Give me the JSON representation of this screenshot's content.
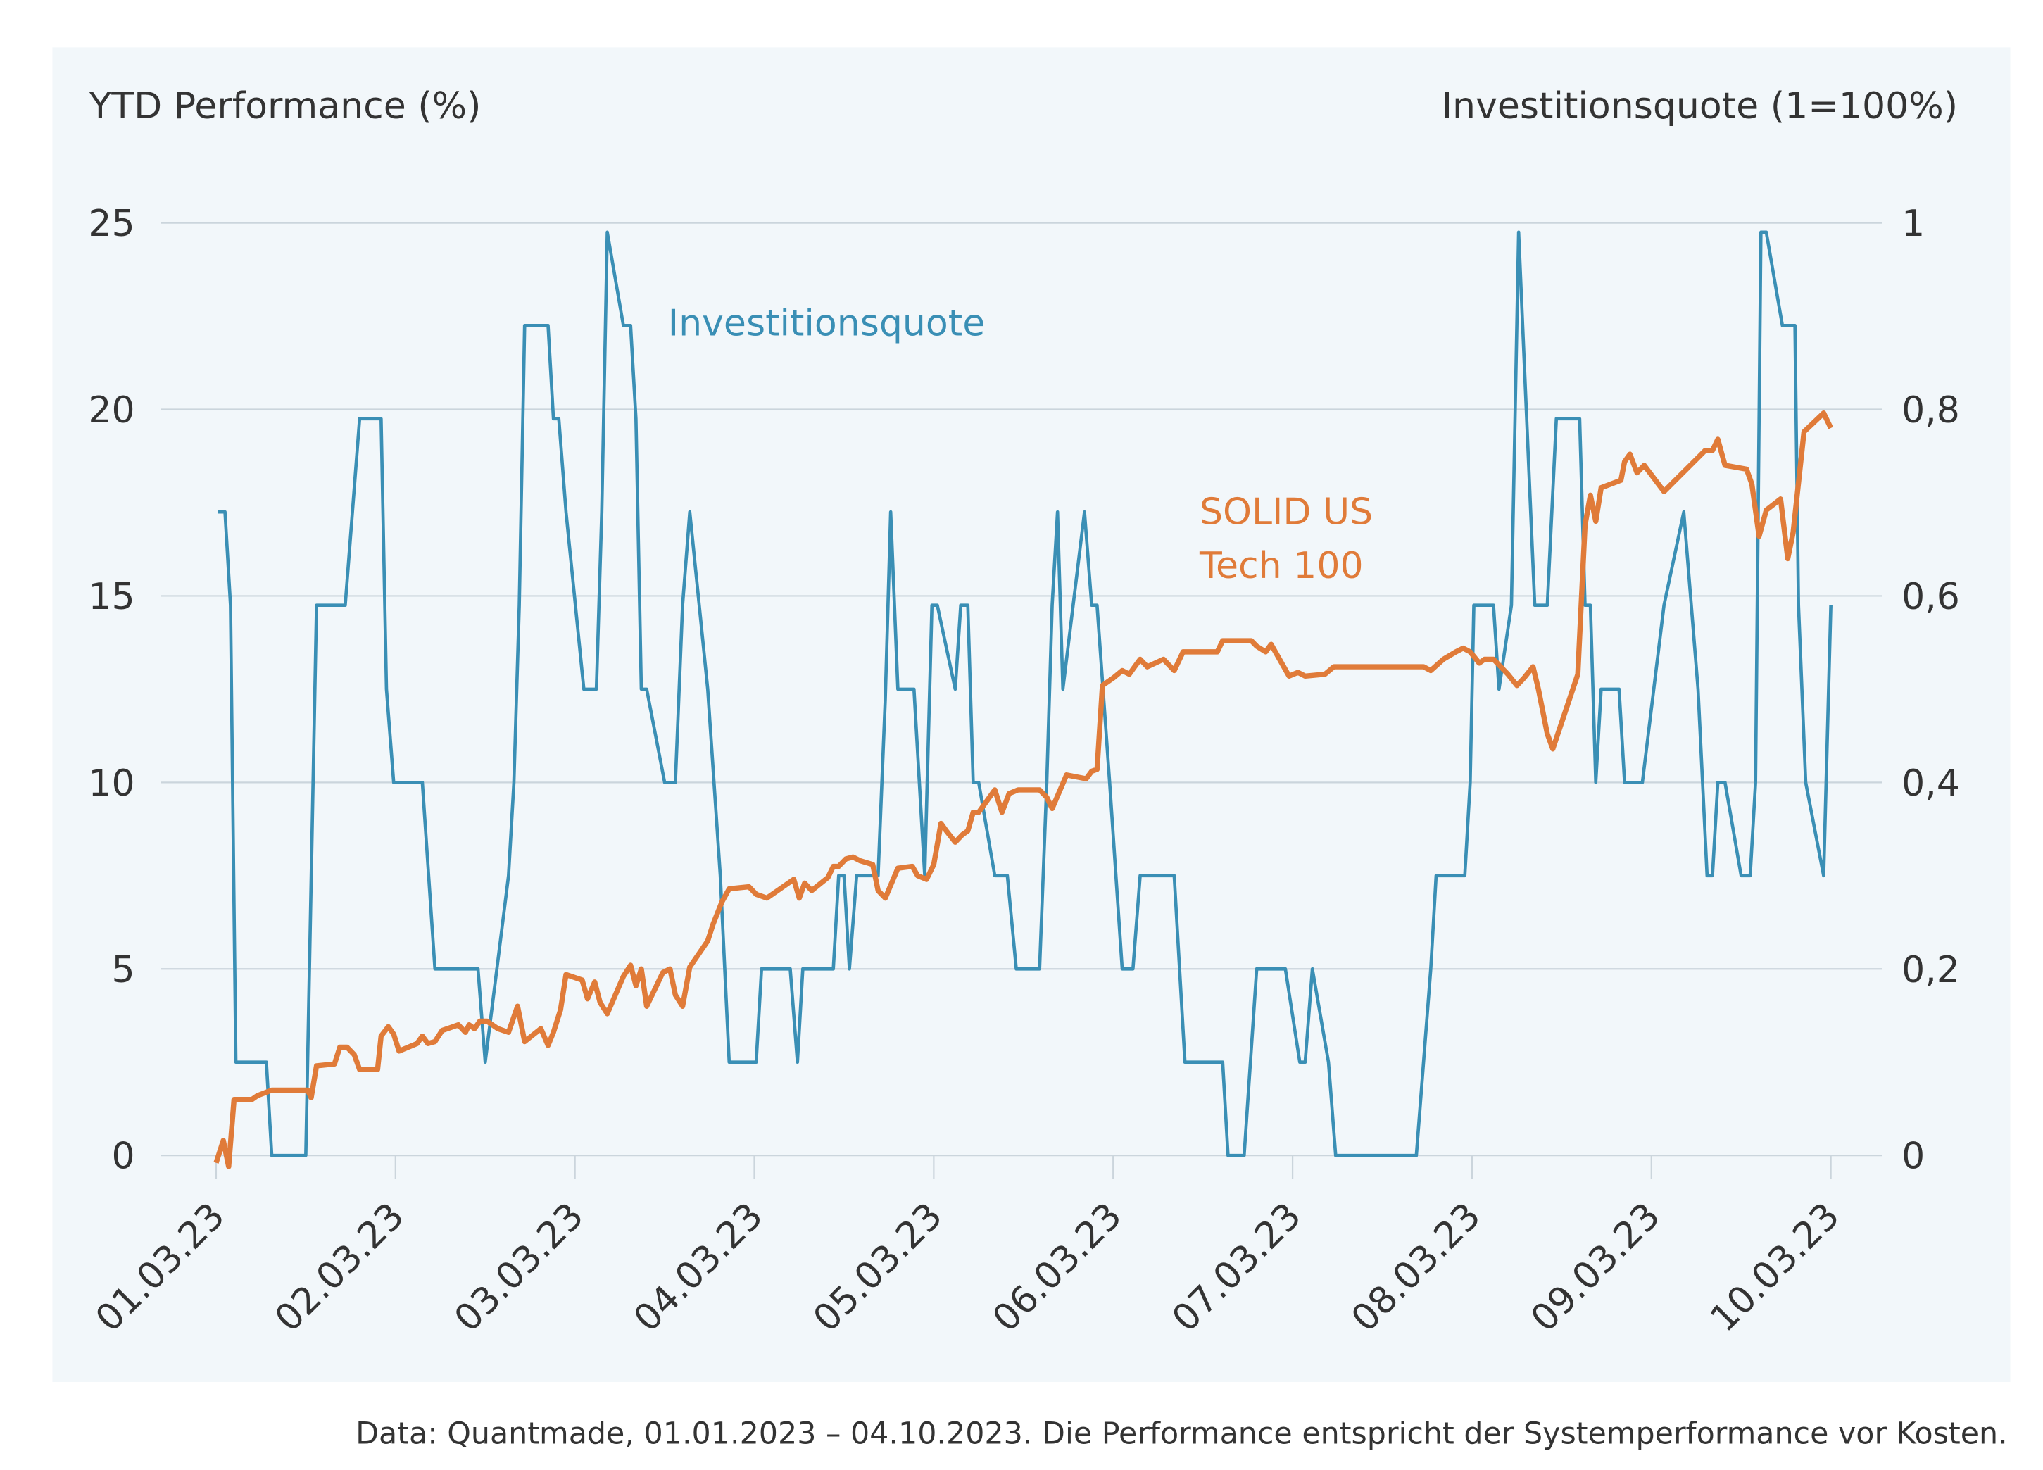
{
  "chart_data": {
    "type": "line",
    "title": "",
    "y_left_label": "YTD Performance (%)",
    "y_right_label": "Investitionsquote (1=100%)",
    "x_axis_unit": "day of March 2023 (1 = 01.03.23)",
    "x_tick_labels": [
      "01.03.23",
      "02.03.23",
      "03.03.23",
      "04.03.23",
      "05.03.23",
      "06.03.23",
      "07.03.23",
      "08.03.23",
      "09.03.23",
      "10.03.23"
    ],
    "x_ticks": [
      1,
      2,
      3,
      4,
      5,
      6,
      7,
      8,
      9,
      10
    ],
    "xlim": [
      1,
      10
    ],
    "y_left_ticks": [
      0,
      5,
      10,
      15,
      20,
      25
    ],
    "y_left_tick_labels": [
      "0",
      "5",
      "10",
      "15",
      "20",
      "25"
    ],
    "ylim_left": [
      0,
      25
    ],
    "y_right_ticks": [
      0,
      0.2,
      0.4,
      0.6,
      0.8,
      1
    ],
    "y_right_tick_labels": [
      "0",
      "0,2",
      "0,4",
      "0,6",
      "0,8",
      "1"
    ],
    "ylim_right": [
      0,
      1
    ],
    "grid": "horizontal",
    "colors": {
      "background": "#f2f7fa",
      "grid": "#cbd5dc",
      "performance": "#e07b39",
      "quote": "#3a8fb5",
      "text": "#333333"
    },
    "series": [
      {
        "name": "SOLID US Tech 100",
        "label_lines": [
          "SOLID US",
          "Tech 100"
        ],
        "axis": "left",
        "points": [
          [
            1.0,
            -0.2
          ],
          [
            1.04,
            0.4
          ],
          [
            1.07,
            -0.3
          ],
          [
            1.1,
            1.5
          ],
          [
            1.2,
            1.5
          ],
          [
            1.23,
            1.6
          ],
          [
            1.31,
            1.75
          ],
          [
            1.51,
            1.75
          ],
          [
            1.53,
            1.55
          ],
          [
            1.56,
            2.4
          ],
          [
            1.66,
            2.45
          ],
          [
            1.69,
            2.9
          ],
          [
            1.73,
            2.9
          ],
          [
            1.77,
            2.7
          ],
          [
            1.8,
            2.3
          ],
          [
            1.9,
            2.3
          ],
          [
            1.92,
            3.2
          ],
          [
            1.96,
            3.45
          ],
          [
            1.99,
            3.25
          ],
          [
            2.02,
            2.8
          ],
          [
            2.12,
            3.0
          ],
          [
            2.15,
            3.2
          ],
          [
            2.18,
            3.0
          ],
          [
            2.22,
            3.05
          ],
          [
            2.26,
            3.35
          ],
          [
            2.35,
            3.5
          ],
          [
            2.39,
            3.3
          ],
          [
            2.41,
            3.5
          ],
          [
            2.44,
            3.4
          ],
          [
            2.47,
            3.6
          ],
          [
            2.51,
            3.6
          ],
          [
            2.57,
            3.4
          ],
          [
            2.63,
            3.3
          ],
          [
            2.68,
            4.0
          ],
          [
            2.72,
            3.05
          ],
          [
            2.81,
            3.4
          ],
          [
            2.85,
            2.95
          ],
          [
            2.88,
            3.3
          ],
          [
            2.92,
            3.9
          ],
          [
            2.95,
            4.85
          ],
          [
            3.04,
            4.7
          ],
          [
            3.07,
            4.2
          ],
          [
            3.11,
            4.65
          ],
          [
            3.14,
            4.1
          ],
          [
            3.18,
            3.8
          ],
          [
            3.27,
            4.8
          ],
          [
            3.31,
            5.1
          ],
          [
            3.34,
            4.55
          ],
          [
            3.37,
            5.0
          ],
          [
            3.4,
            4.0
          ],
          [
            3.49,
            4.9
          ],
          [
            3.53,
            5.0
          ],
          [
            3.56,
            4.3
          ],
          [
            3.6,
            4.0
          ],
          [
            3.64,
            5.05
          ],
          [
            3.74,
            5.75
          ],
          [
            3.77,
            6.2
          ],
          [
            3.82,
            6.8
          ],
          [
            3.86,
            7.15
          ],
          [
            3.97,
            7.2
          ],
          [
            4.01,
            7.0
          ],
          [
            4.07,
            6.9
          ],
          [
            4.22,
            7.4
          ],
          [
            4.25,
            6.9
          ],
          [
            4.28,
            7.3
          ],
          [
            4.32,
            7.1
          ],
          [
            4.41,
            7.45
          ],
          [
            4.44,
            7.75
          ],
          [
            4.47,
            7.75
          ],
          [
            4.51,
            7.95
          ],
          [
            4.55,
            8.0
          ],
          [
            4.59,
            7.9
          ],
          [
            4.66,
            7.8
          ],
          [
            4.69,
            7.1
          ],
          [
            4.73,
            6.9
          ],
          [
            4.8,
            7.7
          ],
          [
            4.88,
            7.75
          ],
          [
            4.91,
            7.5
          ],
          [
            4.96,
            7.4
          ],
          [
            5.0,
            7.8
          ],
          [
            5.04,
            8.9
          ],
          [
            5.07,
            8.7
          ],
          [
            5.12,
            8.4
          ],
          [
            5.16,
            8.6
          ],
          [
            5.19,
            8.7
          ],
          [
            5.22,
            9.2
          ],
          [
            5.25,
            9.2
          ],
          [
            5.34,
            9.8
          ],
          [
            5.38,
            9.2
          ],
          [
            5.42,
            9.7
          ],
          [
            5.47,
            9.8
          ],
          [
            5.59,
            9.8
          ],
          [
            5.63,
            9.6
          ],
          [
            5.66,
            9.3
          ],
          [
            5.74,
            10.2
          ],
          [
            5.85,
            10.1
          ],
          [
            5.88,
            10.3
          ],
          [
            5.91,
            10.35
          ],
          [
            5.94,
            12.6
          ],
          [
            6.0,
            12.8
          ],
          [
            6.05,
            13.0
          ],
          [
            6.09,
            12.9
          ],
          [
            6.12,
            13.1
          ],
          [
            6.15,
            13.3
          ],
          [
            6.19,
            13.1
          ],
          [
            6.28,
            13.3
          ],
          [
            6.34,
            13.0
          ],
          [
            6.39,
            13.5
          ],
          [
            6.58,
            13.5
          ],
          [
            6.61,
            13.8
          ],
          [
            6.77,
            13.8
          ],
          [
            6.8,
            13.65
          ],
          [
            6.85,
            13.5
          ],
          [
            6.88,
            13.7
          ],
          [
            6.98,
            12.85
          ],
          [
            7.03,
            12.95
          ],
          [
            7.07,
            12.85
          ],
          [
            7.18,
            12.9
          ],
          [
            7.23,
            13.1
          ],
          [
            7.73,
            13.1
          ],
          [
            7.77,
            13.0
          ],
          [
            7.84,
            13.3
          ],
          [
            7.91,
            13.5
          ],
          [
            7.95,
            13.6
          ],
          [
            7.99,
            13.5
          ],
          [
            8.04,
            13.2
          ],
          [
            8.07,
            13.3
          ],
          [
            8.12,
            13.3
          ],
          [
            8.2,
            12.9
          ],
          [
            8.25,
            12.6
          ],
          [
            8.29,
            12.8
          ],
          [
            8.34,
            13.1
          ],
          [
            8.37,
            12.5
          ],
          [
            8.42,
            11.3
          ],
          [
            8.45,
            10.9
          ],
          [
            8.59,
            12.9
          ],
          [
            8.63,
            16.9
          ],
          [
            8.66,
            17.7
          ],
          [
            8.69,
            17.0
          ],
          [
            8.72,
            17.9
          ],
          [
            8.83,
            18.1
          ],
          [
            8.85,
            18.6
          ],
          [
            8.88,
            18.8
          ],
          [
            8.92,
            18.3
          ],
          [
            8.96,
            18.5
          ],
          [
            9.07,
            17.8
          ],
          [
            9.3,
            18.9
          ],
          [
            9.34,
            18.9
          ],
          [
            9.37,
            19.2
          ],
          [
            9.41,
            18.5
          ],
          [
            9.53,
            18.4
          ],
          [
            9.56,
            18.0
          ],
          [
            9.6,
            16.6
          ],
          [
            9.64,
            17.3
          ],
          [
            9.72,
            17.6
          ],
          [
            9.76,
            16.0
          ],
          [
            9.79,
            16.7
          ],
          [
            9.85,
            19.4
          ],
          [
            9.96,
            19.9
          ],
          [
            10.0,
            19.5
          ]
        ]
      },
      {
        "name": "Investitionsquote",
        "label_lines": [
          "Investitionsquote"
        ],
        "axis": "right",
        "points": [
          [
            1.01,
            0.69
          ],
          [
            1.05,
            0.69
          ],
          [
            1.08,
            0.59
          ],
          [
            1.11,
            0.1
          ],
          [
            1.28,
            0.1
          ],
          [
            1.31,
            0
          ],
          [
            1.5,
            0
          ],
          [
            1.56,
            0.59
          ],
          [
            1.72,
            0.59
          ],
          [
            1.8,
            0.79
          ],
          [
            1.92,
            0.79
          ],
          [
            1.95,
            0.5
          ],
          [
            1.99,
            0.4
          ],
          [
            2.15,
            0.4
          ],
          [
            2.22,
            0.2
          ],
          [
            2.46,
            0.2
          ],
          [
            2.5,
            0.1
          ],
          [
            2.63,
            0.3
          ],
          [
            2.66,
            0.4
          ],
          [
            2.69,
            0.59
          ],
          [
            2.72,
            0.89
          ],
          [
            2.85,
            0.89
          ],
          [
            2.88,
            0.79
          ],
          [
            2.91,
            0.79
          ],
          [
            2.95,
            0.69
          ],
          [
            3.05,
            0.5
          ],
          [
            3.12,
            0.5
          ],
          [
            3.15,
            0.69
          ],
          [
            3.18,
            0.99
          ],
          [
            3.27,
            0.89
          ],
          [
            3.31,
            0.89
          ],
          [
            3.34,
            0.79
          ],
          [
            3.37,
            0.5
          ],
          [
            3.4,
            0.5
          ],
          [
            3.5,
            0.4
          ],
          [
            3.56,
            0.4
          ],
          [
            3.6,
            0.59
          ],
          [
            3.64,
            0.69
          ],
          [
            3.74,
            0.5
          ],
          [
            3.81,
            0.3
          ],
          [
            3.86,
            0.1
          ],
          [
            4.01,
            0.1
          ],
          [
            4.04,
            0.2
          ],
          [
            4.2,
            0.2
          ],
          [
            4.24,
            0.1
          ],
          [
            4.27,
            0.2
          ],
          [
            4.44,
            0.2
          ],
          [
            4.47,
            0.3
          ],
          [
            4.5,
            0.3
          ],
          [
            4.53,
            0.2
          ],
          [
            4.57,
            0.3
          ],
          [
            4.69,
            0.3
          ],
          [
            4.73,
            0.49
          ],
          [
            4.76,
            0.69
          ],
          [
            4.8,
            0.5
          ],
          [
            4.89,
            0.5
          ],
          [
            4.95,
            0.3
          ],
          [
            4.99,
            0.59
          ],
          [
            5.02,
            0.59
          ],
          [
            5.12,
            0.5
          ],
          [
            5.15,
            0.59
          ],
          [
            5.19,
            0.59
          ],
          [
            5.22,
            0.4
          ],
          [
            5.25,
            0.4
          ],
          [
            5.34,
            0.3
          ],
          [
            5.41,
            0.3
          ],
          [
            5.46,
            0.2
          ],
          [
            5.59,
            0.2
          ],
          [
            5.63,
            0.4
          ],
          [
            5.66,
            0.59
          ],
          [
            5.69,
            0.69
          ],
          [
            5.72,
            0.5
          ],
          [
            5.84,
            0.69
          ],
          [
            5.88,
            0.59
          ],
          [
            5.91,
            0.59
          ],
          [
            5.98,
            0.4
          ],
          [
            6.05,
            0.2
          ],
          [
            6.11,
            0.2
          ],
          [
            6.15,
            0.3
          ],
          [
            6.34,
            0.3
          ],
          [
            6.4,
            0.1
          ],
          [
            6.61,
            0.1
          ],
          [
            6.64,
            0
          ],
          [
            6.73,
            0
          ],
          [
            6.8,
            0.2
          ],
          [
            6.96,
            0.2
          ],
          [
            7.04,
            0.1
          ],
          [
            7.07,
            0.1
          ],
          [
            7.11,
            0.2
          ],
          [
            7.2,
            0.1
          ],
          [
            7.24,
            0
          ],
          [
            7.69,
            0
          ],
          [
            7.77,
            0.2
          ],
          [
            7.8,
            0.3
          ],
          [
            7.96,
            0.3
          ],
          [
            7.99,
            0.4
          ],
          [
            8.01,
            0.59
          ],
          [
            8.12,
            0.59
          ],
          [
            8.15,
            0.5
          ],
          [
            8.22,
            0.59
          ],
          [
            8.26,
            0.99
          ],
          [
            8.35,
            0.59
          ],
          [
            8.42,
            0.59
          ],
          [
            8.47,
            0.79
          ],
          [
            8.6,
            0.79
          ],
          [
            8.63,
            0.59
          ],
          [
            8.66,
            0.59
          ],
          [
            8.69,
            0.4
          ],
          [
            8.72,
            0.5
          ],
          [
            8.82,
            0.5
          ],
          [
            8.85,
            0.4
          ],
          [
            8.95,
            0.4
          ],
          [
            9.07,
            0.59
          ],
          [
            9.18,
            0.69
          ],
          [
            9.26,
            0.5
          ],
          [
            9.31,
            0.3
          ],
          [
            9.34,
            0.3
          ],
          [
            9.37,
            0.4
          ],
          [
            9.41,
            0.4
          ],
          [
            9.5,
            0.3
          ],
          [
            9.55,
            0.3
          ],
          [
            9.58,
            0.4
          ],
          [
            9.61,
            0.99
          ],
          [
            9.64,
            0.99
          ],
          [
            9.73,
            0.89
          ],
          [
            9.8,
            0.89
          ],
          [
            9.82,
            0.59
          ],
          [
            9.86,
            0.4
          ],
          [
            9.96,
            0.3
          ],
          [
            10.0,
            0.59
          ]
        ]
      }
    ],
    "footnote": "Data: Quantmade, 01.01.2023 – 04.10.2023. Die Performance entspricht der Systemperformance vor Kosten."
  }
}
